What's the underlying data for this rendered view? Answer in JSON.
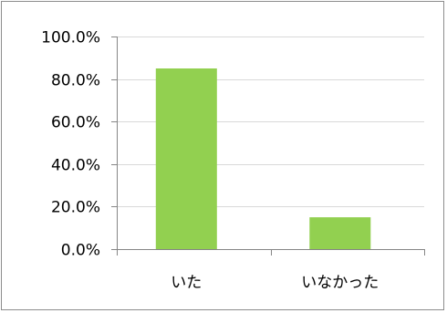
{
  "chart_data": {
    "type": "bar",
    "categories": [
      "いた",
      "いなかった"
    ],
    "values": [
      85.0,
      15.0
    ],
    "ylim": [
      0,
      100
    ],
    "yticks": [
      "0.0%",
      "20.0%",
      "40.0%",
      "60.0%",
      "80.0%",
      "100.0%"
    ],
    "ytick_values": [
      0,
      20,
      40,
      60,
      80,
      100
    ],
    "title": "",
    "xlabel": "",
    "ylabel": "",
    "grid": true,
    "legend": "none",
    "bar_color": "#92d050",
    "grid_color": "#d9d9d9",
    "axis_color": "#868686"
  }
}
